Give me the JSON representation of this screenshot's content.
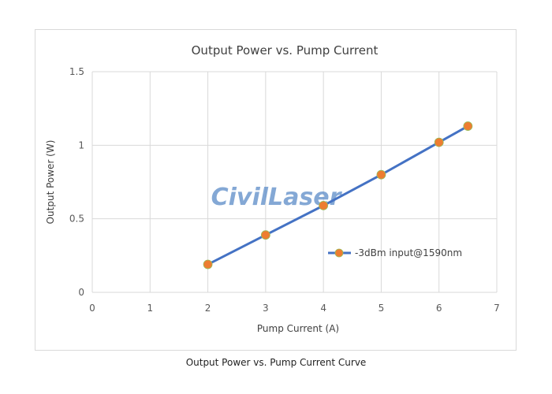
{
  "chart_data": {
    "type": "line",
    "title": "Output Power vs. Pump Current",
    "xlabel": "Pump Current (A)",
    "ylabel": "Output Power (W)",
    "xlim": [
      0,
      7
    ],
    "ylim": [
      0,
      1.5
    ],
    "xticks": [
      "0",
      "1",
      "2",
      "3",
      "4",
      "5",
      "6",
      "7"
    ],
    "yticks": [
      "0",
      "0.5",
      "1",
      "1.5"
    ],
    "grid": true,
    "legend_position": "right",
    "series": [
      {
        "name": "-3dBm input@1590nm",
        "x": [
          2,
          3,
          4,
          5,
          6,
          6.5
        ],
        "y": [
          0.19,
          0.39,
          0.59,
          0.8,
          1.02,
          1.13
        ],
        "line_color": "#4472c4",
        "marker_color": "#ed7d31"
      }
    ]
  },
  "watermark": "CivilLaser",
  "caption": "Output Power vs. Pump Current Curve"
}
